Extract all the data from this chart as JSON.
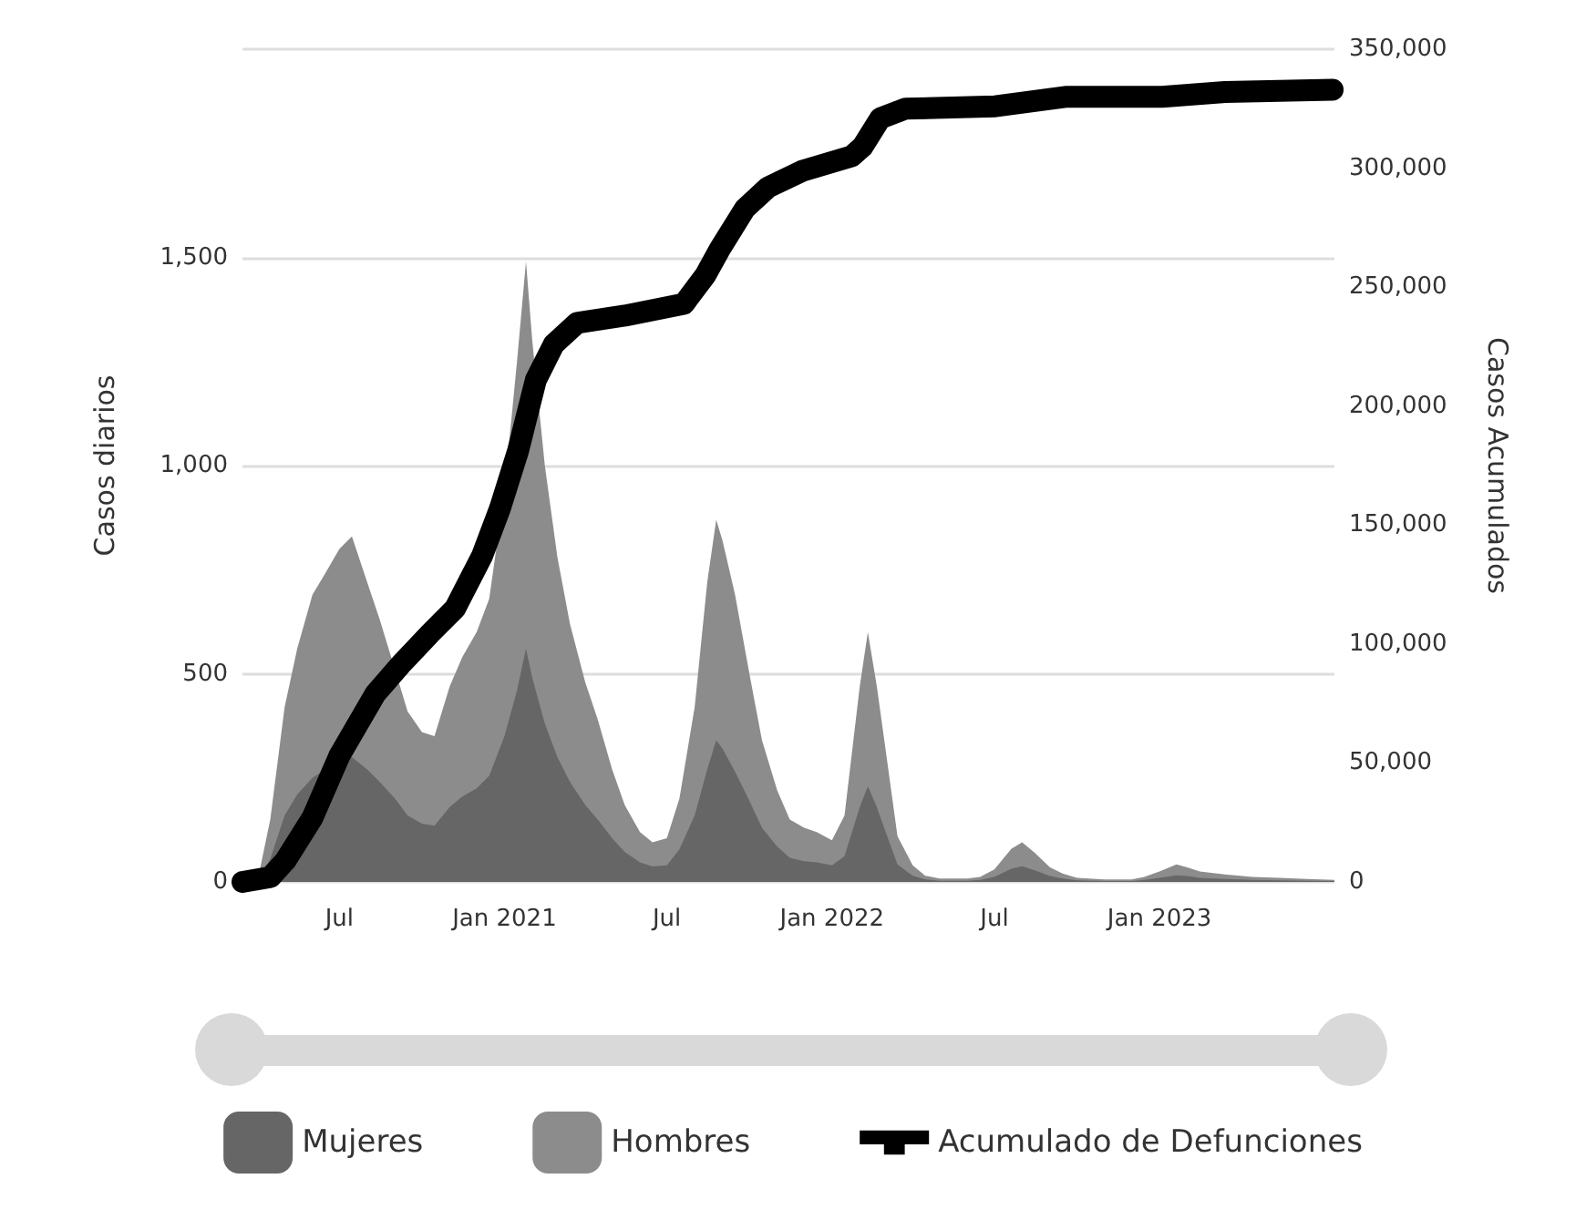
{
  "chart_data": {
    "type": "area",
    "ylabel": "Casos diarios",
    "y2label": "Casos Acumulados",
    "stacked": true,
    "grid": "y",
    "legend": "bottom",
    "marker": "none",
    "x": [
      "2020-03-15",
      "2020-04-01",
      "2020-04-15",
      "2020-05-01",
      "2020-05-15",
      "2020-06-01",
      "2020-06-15",
      "2020-07-01",
      "2020-07-15",
      "2020-08-01",
      "2020-08-15",
      "2020-09-01",
      "2020-09-15",
      "2020-10-01",
      "2020-10-15",
      "2020-11-01",
      "2020-11-15",
      "2020-12-01",
      "2020-12-15",
      "2021-01-01",
      "2021-01-15",
      "2021-01-25",
      "2021-02-01",
      "2021-02-15",
      "2021-03-01",
      "2021-03-15",
      "2021-04-01",
      "2021-04-15",
      "2021-05-01",
      "2021-05-15",
      "2021-06-01",
      "2021-06-15",
      "2021-07-01",
      "2021-07-15",
      "2021-08-01",
      "2021-08-15",
      "2021-08-25",
      "2021-09-01",
      "2021-09-15",
      "2021-10-01",
      "2021-10-15",
      "2021-11-01",
      "2021-11-15",
      "2021-12-01",
      "2021-12-15",
      "2022-01-01",
      "2022-01-15",
      "2022-02-01",
      "2022-02-10",
      "2022-02-20",
      "2022-03-01",
      "2022-03-15",
      "2022-04-01",
      "2022-04-15",
      "2022-05-01",
      "2022-06-01",
      "2022-06-15",
      "2022-07-01",
      "2022-07-20",
      "2022-08-01",
      "2022-08-15",
      "2022-09-01",
      "2022-09-15",
      "2022-10-01",
      "2022-11-01",
      "2022-12-01",
      "2022-12-15",
      "2023-01-01",
      "2023-01-20",
      "2023-02-01",
      "2023-02-15",
      "2023-03-15",
      "2023-04-15",
      "2023-05-15",
      "2023-06-15",
      "2023-07-15"
    ],
    "xlim": [
      "2020-03-15",
      "2023-07-15"
    ],
    "xticks": [
      {
        "value": "2020-07-01",
        "label": "Jul"
      },
      {
        "value": "2021-01-01",
        "label": "Jan 2021"
      },
      {
        "value": "2021-07-01",
        "label": "Jul"
      },
      {
        "value": "2022-01-01",
        "label": "Jan 2022"
      },
      {
        "value": "2022-07-01",
        "label": "Jul"
      },
      {
        "value": "2023-01-01",
        "label": "Jan 2023"
      }
    ],
    "ylim": [
      0,
      2000
    ],
    "yticks": [
      0,
      500,
      {
        "value": 1000,
        "label": "1,000"
      },
      {
        "value": 1500,
        "label": "1,500"
      },
      {
        "value": 2000,
        "label": null
      }
    ],
    "y2lim": [
      0,
      350000
    ],
    "y2ticks": [
      0,
      {
        "value": 50000,
        "label": "50,000"
      },
      {
        "value": 100000,
        "label": "100,000"
      },
      {
        "value": 150000,
        "label": "150,000"
      },
      {
        "value": 200000,
        "label": "200,000"
      },
      {
        "value": 250000,
        "label": "250,000"
      },
      {
        "value": 300000,
        "label": "300,000"
      },
      {
        "value": 350000,
        "label": "350,000"
      }
    ],
    "series": [
      {
        "name": "Mujeres",
        "color": "#666666",
        "values": [
          0,
          2,
          55,
          160,
          210,
          250,
          270,
          290,
          300,
          270,
          240,
          200,
          160,
          140,
          135,
          180,
          205,
          225,
          255,
          350,
          460,
          560,
          490,
          380,
          300,
          240,
          185,
          150,
          105,
          72,
          47,
          37,
          40,
          78,
          160,
          270,
          340,
          320,
          265,
          195,
          130,
          85,
          58,
          50,
          47,
          40,
          62,
          180,
          230,
          180,
          125,
          42,
          15,
          6,
          3,
          3,
          5,
          12,
          32,
          38,
          28,
          14,
          8,
          4,
          2,
          2,
          5,
          10,
          16,
          14,
          10,
          7,
          5,
          4,
          3,
          2
        ]
      },
      {
        "name": "Hombres",
        "color": "#8c8c8c",
        "values": [
          0,
          3,
          95,
          260,
          350,
          440,
          470,
          510,
          530,
          450,
          390,
          310,
          250,
          220,
          215,
          290,
          335,
          375,
          425,
          590,
          790,
          930,
          810,
          620,
          480,
          380,
          295,
          240,
          165,
          113,
          73,
          58,
          65,
          122,
          260,
          450,
          530,
          500,
          425,
          305,
          210,
          135,
          92,
          80,
          73,
          60,
          98,
          290,
          370,
          290,
          205,
          68,
          25,
          9,
          5,
          5,
          7,
          18,
          48,
          57,
          42,
          21,
          12,
          6,
          4,
          4,
          7,
          15,
          26,
          21,
          15,
          11,
          7,
          6,
          4,
          3
        ]
      },
      {
        "name": "Acumulado de Defunciones",
        "type": "line",
        "axis": "y2",
        "color": "#000000",
        "x": [
          "2020-03-15",
          "2020-04-15",
          "2020-05-02",
          "2020-06-01",
          "2020-07-01",
          "2020-08-10",
          "2020-09-09",
          "2020-10-09",
          "2020-11-07",
          "2020-12-07",
          "2020-12-27",
          "2021-01-16",
          "2021-02-05",
          "2021-02-25",
          "2021-03-23",
          "2021-05-15",
          "2021-07-20",
          "2021-08-13",
          "2021-08-29",
          "2021-09-26",
          "2021-10-22",
          "2021-11-30",
          "2022-01-23",
          "2022-02-04",
          "2022-02-24",
          "2022-03-24",
          "2022-07-02",
          "2022-09-20",
          "2023-01-04",
          "2023-03-15",
          "2023-07-13"
        ],
        "values": [
          0,
          2000,
          9000,
          27000,
          53000,
          79000,
          92000,
          104000,
          115000,
          137000,
          157000,
          181000,
          211000,
          226000,
          235000,
          238000,
          243000,
          255000,
          266000,
          283000,
          292000,
          299000,
          305000,
          309000,
          321000,
          325000,
          326000,
          330000,
          330000,
          332000,
          333000
        ]
      }
    ]
  }
}
